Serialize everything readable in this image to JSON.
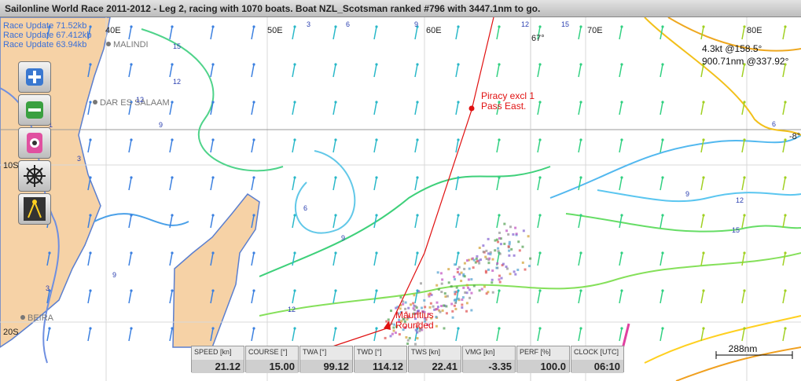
{
  "header": {
    "title": "Sailonline World Race 2011-2012 - Leg 2, racing with 1070 boats. Boat NZL_Scotsman ranked #796 with 3447.1nm to go."
  },
  "race_updates": [
    "Race Update 71.52kb",
    "Race Update 67.412kb",
    "Race Update 63.94kb"
  ],
  "grid_labels": [
    "40E",
    "50E",
    "60E",
    "70E",
    "80E",
    "10S",
    "20S",
    "67°",
    "-8°"
  ],
  "places": [
    "MALINDI",
    "DAR ES SALAAM",
    "BEIRA"
  ],
  "contour_labels": [
    3,
    6,
    9,
    12,
    15,
    15,
    12,
    12,
    9,
    3,
    6,
    9,
    9,
    12,
    9,
    12,
    15,
    6,
    3,
    1
  ],
  "waypoints": [
    [
      "Piracy excl 1",
      "Pass East."
    ],
    [
      "Mauritius",
      "Rounded"
    ]
  ],
  "cursor_info": [
    "4.3kt @158.5°",
    "900.71nm @337.92°"
  ],
  "instruments": [
    {
      "label": "SPEED [kn]",
      "value": "21.12"
    },
    {
      "label": "COURSE [°]",
      "value": "15.00"
    },
    {
      "label": "TWA [°]",
      "value": "99.12"
    },
    {
      "label": "TWD [°]",
      "value": "114.12"
    },
    {
      "label": "TWS [kn]",
      "value": "22.41"
    },
    {
      "label": "VMG [kn]",
      "value": "-3.35"
    },
    {
      "label": "PERF [%]",
      "value": "100.0"
    },
    {
      "label": "CLOCK [UTC]",
      "value": "06:10"
    }
  ],
  "scale": "288nm"
}
